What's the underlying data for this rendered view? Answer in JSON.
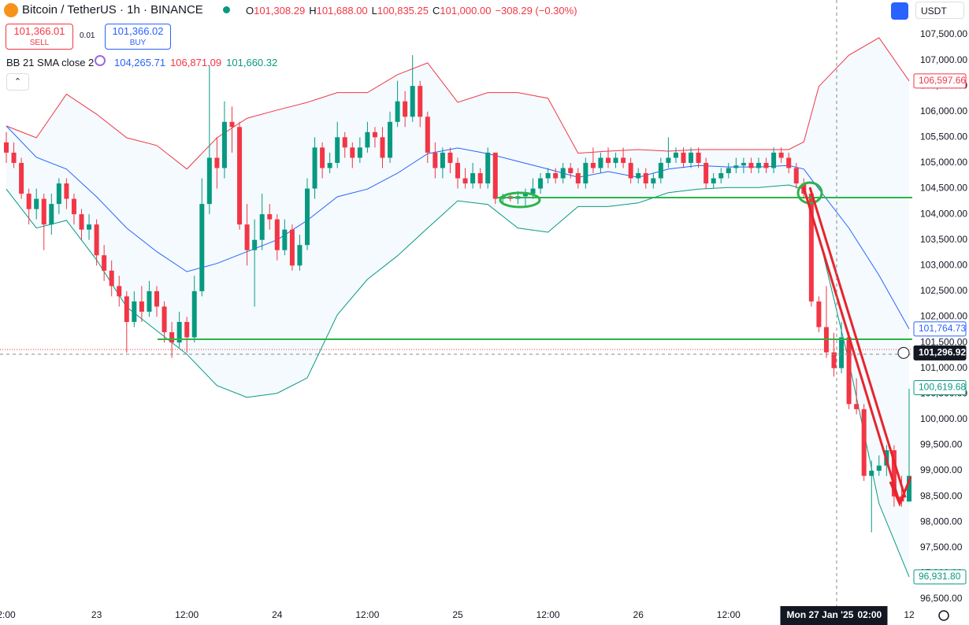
{
  "header": {
    "symbol": "Bitcoin / TetherUS · 1h · BINANCE",
    "ohlc": [
      {
        "key": "O",
        "value": "101,308.29"
      },
      {
        "key": "H",
        "value": "101,688.00"
      },
      {
        "key": "L",
        "value": "100,835.25"
      },
      {
        "key": "C",
        "value": "101,000.00"
      }
    ],
    "change": "−308.29 (−0.30%)"
  },
  "trade": {
    "sell_price": "101,366.01",
    "sell_label": "SELL",
    "spread": "0.01",
    "buy_price": "101,366.02",
    "buy_label": "BUY"
  },
  "indicator": {
    "name": "BB 21 SMA close 2",
    "values": [
      {
        "text": "104,265.71",
        "color": "#2962ff"
      },
      {
        "text": "106,871.09",
        "color": "#f23645"
      },
      {
        "text": "101,660.32",
        "color": "#089981"
      }
    ]
  },
  "currency": "USDT",
  "chart_data": {
    "type": "candlestick",
    "up_color": "#089981",
    "down_color": "#f23645",
    "ylim": [
      96500,
      107500
    ],
    "yticks": [
      {
        "value": 107500,
        "label": "107,500.00"
      },
      {
        "value": 107000,
        "label": "107,000.00"
      },
      {
        "value": 106500,
        "label": "106,500.00"
      },
      {
        "value": 106000,
        "label": "106,000.00"
      },
      {
        "value": 105500,
        "label": "105,500.00"
      },
      {
        "value": 105000,
        "label": "105,000.00"
      },
      {
        "value": 104500,
        "label": "104,500.00"
      },
      {
        "value": 104000,
        "label": "104,000.00"
      },
      {
        "value": 103500,
        "label": "103,500.00"
      },
      {
        "value": 103000,
        "label": "103,000.00"
      },
      {
        "value": 102500,
        "label": "102,500.00"
      },
      {
        "value": 102000,
        "label": "102,000.00"
      },
      {
        "value": 101500,
        "label": "101,500.00"
      },
      {
        "value": 101000,
        "label": "101,000.00"
      },
      {
        "value": 100500,
        "label": "100,500.00"
      },
      {
        "value": 100000,
        "label": "100,000.00"
      },
      {
        "value": 99500,
        "label": "99,500.00"
      },
      {
        "value": 99000,
        "label": "99,000.00"
      },
      {
        "value": 98500,
        "label": "98,500.00"
      },
      {
        "value": 98000,
        "label": "98,000.00"
      },
      {
        "value": 97500,
        "label": "97,500.00"
      },
      {
        "value": 97000,
        "label": "97,000.00"
      },
      {
        "value": 96500,
        "label": "96,500.00"
      }
    ],
    "xticks": [
      {
        "value": 0,
        "label": "2:00"
      },
      {
        "value": 12,
        "label": "23"
      },
      {
        "value": 24,
        "label": "12:00"
      },
      {
        "value": 36,
        "label": "24"
      },
      {
        "value": 48,
        "label": "12:00"
      },
      {
        "value": 60,
        "label": "25"
      },
      {
        "value": 72,
        "label": "12:00"
      },
      {
        "value": 84,
        "label": "26"
      },
      {
        "value": 96,
        "label": "12:00"
      },
      {
        "value": 120,
        "label": "12"
      }
    ],
    "crosshair": {
      "x": 110,
      "price": 101296.92,
      "date_label": "Mon 27 Jan '25",
      "time_label": "02:00"
    },
    "badges": [
      {
        "value": 106597.66,
        "label": "106,597.66",
        "color": "#f23645"
      },
      {
        "value": 101764.73,
        "label": "101,764.73",
        "color": "#2962ff"
      },
      {
        "value": 101296.92,
        "label": "101,296.92",
        "color": "#131722"
      },
      {
        "value": 100619.68,
        "label": "100,619.68",
        "color": "#089981"
      },
      {
        "value": 96931.8,
        "label": "96,931.80",
        "color": "#089981"
      }
    ],
    "ohlc": [
      [
        105400,
        105600,
        105000,
        105200
      ],
      [
        105200,
        105400,
        104900,
        105000
      ],
      [
        105000,
        105100,
        104300,
        104400
      ],
      [
        104400,
        104500,
        103800,
        104100
      ],
      [
        104100,
        104500,
        103900,
        104300
      ],
      [
        104300,
        104400,
        103300,
        103800
      ],
      [
        103800,
        104400,
        103600,
        104200
      ],
      [
        104200,
        104700,
        104000,
        104600
      ],
      [
        104600,
        104700,
        104100,
        104300
      ],
      [
        104300,
        104400,
        103800,
        104000
      ],
      [
        104000,
        104100,
        103500,
        103700
      ],
      [
        103700,
        104000,
        103500,
        103800
      ],
      [
        103800,
        103900,
        103000,
        103200
      ],
      [
        103200,
        103400,
        102700,
        102900
      ],
      [
        102900,
        103100,
        102400,
        102600
      ],
      [
        102600,
        102800,
        102200,
        102400
      ],
      [
        102400,
        102500,
        101300,
        101900
      ],
      [
        101900,
        102500,
        101800,
        102300
      ],
      [
        102300,
        102600,
        101900,
        102100
      ],
      [
        102100,
        102700,
        102000,
        102500
      ],
      [
        102500,
        102600,
        102000,
        102200
      ],
      [
        102200,
        102300,
        101500,
        101700
      ],
      [
        101700,
        101900,
        101200,
        101500
      ],
      [
        101500,
        102100,
        101400,
        101900
      ],
      [
        101900,
        102000,
        101300,
        101600
      ],
      [
        101600,
        102800,
        101500,
        102500
      ],
      [
        102500,
        104700,
        102400,
        104200
      ],
      [
        104200,
        106900,
        104000,
        105100
      ],
      [
        105100,
        105500,
        104500,
        104900
      ],
      [
        104900,
        106200,
        104700,
        105800
      ],
      [
        105800,
        106100,
        105200,
        105700
      ],
      [
        105700,
        105800,
        103700,
        103800
      ],
      [
        103800,
        104200,
        103000,
        103300
      ],
      [
        103300,
        103900,
        102200,
        103500
      ],
      [
        103500,
        104400,
        103300,
        104000
      ],
      [
        104000,
        104200,
        103700,
        103900
      ],
      [
        103900,
        104000,
        103100,
        103300
      ],
      [
        103300,
        103900,
        103200,
        103700
      ],
      [
        103700,
        103800,
        102900,
        103000
      ],
      [
        103000,
        103600,
        102900,
        103400
      ],
      [
        103400,
        104700,
        103300,
        104500
      ],
      [
        104500,
        105500,
        104300,
        105300
      ],
      [
        105300,
        105400,
        104700,
        104900
      ],
      [
        104900,
        105200,
        104800,
        105000
      ],
      [
        105000,
        105800,
        104900,
        105500
      ],
      [
        105500,
        105600,
        105100,
        105300
      ],
      [
        105300,
        105400,
        104900,
        105100
      ],
      [
        105100,
        105500,
        105000,
        105300
      ],
      [
        105300,
        105800,
        105200,
        105600
      ],
      [
        105600,
        105700,
        105300,
        105500
      ],
      [
        105500,
        105700,
        104900,
        105100
      ],
      [
        105100,
        106000,
        105000,
        105800
      ],
      [
        105800,
        106600,
        105700,
        106200
      ],
      [
        106200,
        106400,
        105700,
        105900
      ],
      [
        105900,
        107100,
        105800,
        106500
      ],
      [
        106500,
        106600,
        105700,
        105900
      ],
      [
        105900,
        106000,
        105000,
        105200
      ],
      [
        105200,
        105400,
        104700,
        104900
      ],
      [
        104900,
        105300,
        104700,
        105200
      ],
      [
        105200,
        105300,
        104800,
        105000
      ],
      [
        105000,
        105100,
        104500,
        104700
      ],
      [
        104700,
        104900,
        104500,
        104600
      ],
      [
        104600,
        105000,
        104500,
        104800
      ],
      [
        104800,
        104900,
        104500,
        104600
      ],
      [
        104600,
        105300,
        104500,
        105200
      ],
      [
        105200,
        105200,
        104200,
        104300
      ],
      [
        104300,
        104400,
        104200,
        104350
      ],
      [
        104350,
        104400,
        104250,
        104300
      ],
      [
        104300,
        104450,
        104200,
        104350
      ],
      [
        104350,
        104500,
        104150,
        104400
      ],
      [
        104400,
        104700,
        104300,
        104500
      ],
      [
        104500,
        104800,
        104400,
        104700
      ],
      [
        104700,
        104900,
        104600,
        104800
      ],
      [
        104800,
        104900,
        104600,
        104700
      ],
      [
        104700,
        105000,
        104600,
        104900
      ],
      [
        104900,
        105000,
        104700,
        104800
      ],
      [
        104800,
        104900,
        104500,
        104600
      ],
      [
        104600,
        105100,
        104500,
        105000
      ],
      [
        105000,
        105300,
        104800,
        104900
      ],
      [
        104900,
        105200,
        104800,
        105100
      ],
      [
        105100,
        105300,
        104900,
        105000
      ],
      [
        105000,
        105200,
        104900,
        105100
      ],
      [
        105100,
        105300,
        104900,
        105000
      ],
      [
        105000,
        105100,
        104600,
        104700
      ],
      [
        104700,
        104900,
        104600,
        104800
      ],
      [
        104800,
        104900,
        104500,
        104600
      ],
      [
        104600,
        104800,
        104500,
        104700
      ],
      [
        104700,
        105100,
        104600,
        105000
      ],
      [
        105000,
        105500,
        104900,
        105100
      ],
      [
        105100,
        105300,
        105000,
        105200
      ],
      [
        105200,
        105300,
        104900,
        105000
      ],
      [
        105000,
        105300,
        104900,
        105200
      ],
      [
        105200,
        105300,
        104900,
        105000
      ],
      [
        105000,
        105100,
        104500,
        104600
      ],
      [
        104600,
        104800,
        104500,
        104700
      ],
      [
        104700,
        104900,
        104600,
        104800
      ],
      [
        104800,
        105000,
        104700,
        104900
      ],
      [
        104900,
        105100,
        104800,
        104950
      ],
      [
        104950,
        105100,
        104800,
        105000
      ],
      [
        105000,
        105100,
        104800,
        104900
      ],
      [
        104900,
        105100,
        104800,
        105000
      ],
      [
        105000,
        105100,
        104800,
        104900
      ],
      [
        104900,
        105300,
        104800,
        105200
      ],
      [
        105200,
        105300,
        105000,
        105100
      ],
      [
        105100,
        105200,
        104800,
        104900
      ],
      [
        104900,
        105000,
        104500,
        104600
      ],
      [
        104600,
        104700,
        104300,
        104400
      ],
      [
        104400,
        104500,
        102200,
        102300
      ],
      [
        102300,
        102400,
        101700,
        101800
      ],
      [
        101800,
        102600,
        101200,
        101308.29
      ],
      [
        101308.29,
        101688,
        100835.25,
        101000
      ],
      [
        101000,
        101900,
        100900,
        101600
      ],
      [
        101600,
        101700,
        100200,
        100300
      ],
      [
        100300,
        100800,
        100100,
        100200
      ],
      [
        100200,
        100300,
        98800,
        98900
      ],
      [
        98900,
        99200,
        97800,
        99000
      ],
      [
        99000,
        99300,
        98900,
        99100
      ],
      [
        99100,
        99500,
        98900,
        99400
      ],
      [
        99400,
        99500,
        98300,
        98500
      ],
      [
        98500,
        98900,
        98300,
        98400
      ],
      [
        98400,
        100600,
        98400,
        98900
      ]
    ],
    "bands": [
      {
        "color": "#f23645",
        "x": [
          0,
          4,
          8,
          12,
          16,
          20,
          24,
          28,
          32,
          36,
          40,
          44,
          48,
          52,
          56,
          60,
          64,
          68,
          72,
          76,
          80,
          84,
          88,
          92,
          96,
          100,
          104,
          106,
          108,
          112,
          116,
          120
        ],
        "values": [
          105720,
          105490,
          106340,
          105950,
          105490,
          105340,
          104880,
          105490,
          105870,
          106030,
          106180,
          106370,
          106370,
          106720,
          106950,
          106180,
          106370,
          106370,
          106260,
          105190,
          105230,
          105260,
          105230,
          105260,
          105260,
          105260,
          105260,
          105410,
          106490,
          107100,
          107440,
          106597.66
        ]
      },
      {
        "color": "#2962ff",
        "x": [
          0,
          4,
          8,
          12,
          16,
          20,
          24,
          28,
          32,
          36,
          40,
          44,
          48,
          52,
          56,
          60,
          64,
          68,
          72,
          76,
          80,
          84,
          88,
          92,
          96,
          100,
          104,
          106,
          108,
          112,
          116,
          120
        ],
        "values": [
          105720,
          105110,
          104880,
          104340,
          103730,
          103270,
          102880,
          103040,
          103270,
          103500,
          103880,
          104340,
          104490,
          104800,
          105180,
          105290,
          105180,
          105030,
          104880,
          104720,
          104830,
          104720,
          104880,
          104950,
          104920,
          104920,
          104950,
          104880,
          104490,
          103730,
          102810,
          101764.73
        ]
      },
      {
        "color": "#089981",
        "x": [
          0,
          4,
          8,
          12,
          16,
          20,
          24,
          28,
          32,
          36,
          40,
          44,
          48,
          52,
          56,
          60,
          64,
          68,
          72,
          76,
          80,
          84,
          88,
          92,
          96,
          100,
          104,
          106,
          108,
          112,
          116,
          120
        ],
        "values": [
          104490,
          103730,
          103880,
          103110,
          102190,
          101730,
          101270,
          100660,
          100430,
          100510,
          100810,
          102040,
          102730,
          103190,
          103730,
          104260,
          104190,
          103730,
          103650,
          104150,
          104150,
          104220,
          104420,
          104490,
          104520,
          104520,
          104570,
          104490,
          103570,
          101120,
          98360,
          96931.8
        ]
      }
    ]
  }
}
